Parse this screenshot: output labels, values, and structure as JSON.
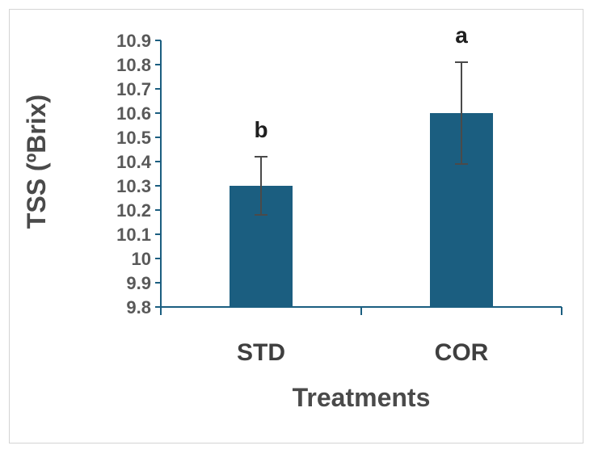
{
  "chart_data": {
    "type": "bar",
    "title": "",
    "xlabel": "Treatments",
    "ylabel": "TSS (ºBrix)",
    "categories": [
      "STD",
      "COR"
    ],
    "values": [
      10.3,
      10.6
    ],
    "error_low": [
      10.18,
      10.39
    ],
    "error_high": [
      10.42,
      10.81
    ],
    "significance_letters": [
      "b",
      "a"
    ],
    "ylim": [
      9.8,
      10.9
    ],
    "yticks": [
      "9.8",
      "9.9",
      "10",
      "10.1",
      "10.2",
      "10.3",
      "10.4",
      "10.5",
      "10.6",
      "10.7",
      "10.8",
      "10.9"
    ],
    "grid": false,
    "bar_color": "#1b5e80",
    "axis_color": "#1b5e80",
    "errorbar_color": "#4a4a4a"
  }
}
